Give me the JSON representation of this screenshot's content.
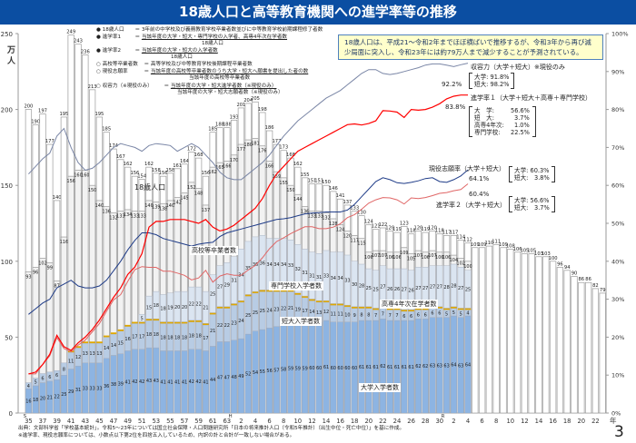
{
  "title": "18歳人口と高等教育機関への進学率等の推移",
  "legend": [
    {
      "marker": "filled",
      "label": "18歳人口",
      "eq": "＝",
      "numerator": "3年前の中学校及び義務教育学校卒業者数並びに中等教育学校前期課程修了者数",
      "denominator": ""
    },
    {
      "marker": "filled",
      "label": "進学率1",
      "eq": "＝",
      "numerator": "当該年度の大学・短大・専門学校の入学者、高専4年次在学者数",
      "denominator": "18歳人口"
    },
    {
      "marker": "filled",
      "label": "進学率2",
      "eq": "＝",
      "numerator": "当該年度の大学・短大の入学者数",
      "denominator": "18歳人口"
    },
    {
      "marker": "hollow",
      "label": "高校等卒業者数",
      "eq": "＝",
      "numerator": "高等学校及び中等教育学校後期課程卒業者数",
      "denominator": ""
    },
    {
      "marker": "hollow",
      "label": "現役志願率",
      "eq": "＝",
      "numerator": "当該年度の高校等卒業者数のうち大学・短大へ願書を提出した者の数",
      "denominator": "当該年度の高校等卒業者数"
    },
    {
      "marker": "hollow",
      "label": "収容力（※現役のみ）",
      "eq": "＝",
      "numerator": "当該年度の大学・短大進学者数（※現役のみ）",
      "denominator": "当該年度の大学・短大志願者数（※現役のみ）"
    }
  ],
  "note_box": "18歳人口は、平成21～令和2年までほぼ横ばいで推移するが、令和3年から再び減少局面に突入し、令和23年には約79万人まで減少することが予測されている。",
  "annotations": {
    "capacity": {
      "label": "収容力（大学＋短大）※現役のみ",
      "value": "92.2%",
      "breakdown": [
        "大学: 91.8%",
        "短大: 98.2%"
      ]
    },
    "rate1": {
      "label": "進学率１（大学＋短大＋高専＋専門学校）",
      "value": "83.8%",
      "breakdown": [
        [
          "大　学:",
          "56.6%"
        ],
        [
          "短　大:",
          "3.7%"
        ],
        [
          "高専4年次:",
          "1.0%"
        ],
        [
          "専門学校:",
          "22.5%"
        ]
      ]
    },
    "application": {
      "label": "現役志願率（大学＋短大）",
      "value": "64.1%",
      "breakdown": [
        "大学: 60.3%",
        "短大:　3.8%"
      ]
    },
    "rate2": {
      "label": "進学率２（大学＋短大）",
      "value": "60.4%",
      "breakdown": [
        "大学: 56.6%",
        "短大:　3.7%"
      ]
    }
  },
  "series_labels": {
    "population": "18歳人口",
    "hs_grads": "高校等卒業者数",
    "vocational": "専門学校入学者数",
    "junior_college": "短大入学者数",
    "kosen": "高専4年次在学者数",
    "university": "大学入学者数"
  },
  "footer": [
    "出典：文部科学省「学校基本統計」。令和5～23年については国立社会保障・人口問題研究所「日本の将来推計人口（令和5年推計）（出生中位・死亡中位）」を基に作成。",
    "※進学率、現役志願率については、小数点以下第2位を四捨五入しているため、内訳の計と合計が一致しない場合がある。"
  ],
  "page_number": "3",
  "colors": {
    "title_bg": "#0b4ea2",
    "population": "#ffffff",
    "hs_grads": "#f2f2f2",
    "university": "#8db4e2",
    "junior_college": "#b8cce4",
    "kosen": "#e0a800",
    "vocational": "#dbe5f1",
    "rate1": "#ff0000",
    "rate2": "#e06666",
    "application": "#1f3c88",
    "capacity": "#7a86a6",
    "note_bg": "#ffffcc",
    "note_border": "#4f81bd"
  },
  "chart_data": {
    "type": "bar+line",
    "y_left": {
      "label": "万人",
      "ticks": [
        "0",
        "50",
        "100",
        "150",
        "200",
        "250"
      ],
      "range": [
        0,
        250
      ]
    },
    "y_right": {
      "ticks": [
        "0%",
        "10%",
        "20%",
        "30%",
        "40%",
        "50%",
        "60%",
        "70%",
        "80%",
        "90%",
        "100%"
      ],
      "range": [
        0,
        100
      ]
    },
    "x_unit": "年",
    "era_marks": [
      {
        "at": "S35",
        "label": "S"
      },
      {
        "at": "H1",
        "label": "H"
      },
      {
        "at": "R1",
        "label": "R"
      }
    ],
    "x_ticks": [
      {
        "at": "S35",
        "label": "35"
      },
      {
        "at": "S37",
        "label": "37"
      },
      {
        "at": "S39",
        "label": "39"
      },
      {
        "at": "S41",
        "label": "41"
      },
      {
        "at": "S43",
        "label": "43"
      },
      {
        "at": "S45",
        "label": "45"
      },
      {
        "at": "S47",
        "label": "47"
      },
      {
        "at": "S49",
        "label": "49"
      },
      {
        "at": "S51",
        "label": "51"
      },
      {
        "at": "S53",
        "label": "53"
      },
      {
        "at": "S55",
        "label": "55"
      },
      {
        "at": "S57",
        "label": "57"
      },
      {
        "at": "S59",
        "label": "59"
      },
      {
        "at": "S61",
        "label": "61"
      },
      {
        "at": "S63",
        "label": "63"
      },
      {
        "at": "H2",
        "label": "2"
      },
      {
        "at": "H4",
        "label": "4"
      },
      {
        "at": "H6",
        "label": "6"
      },
      {
        "at": "H8",
        "label": "8"
      },
      {
        "at": "H10",
        "label": "10"
      },
      {
        "at": "H12",
        "label": "12"
      },
      {
        "at": "H14",
        "label": "14"
      },
      {
        "at": "H16",
        "label": "16"
      },
      {
        "at": "H18",
        "label": "18"
      },
      {
        "at": "H20",
        "label": "20"
      },
      {
        "at": "H22",
        "label": "22"
      },
      {
        "at": "H24",
        "label": "24"
      },
      {
        "at": "H26",
        "label": "26"
      },
      {
        "at": "H28",
        "label": "28"
      },
      {
        "at": "H30",
        "label": "30"
      },
      {
        "at": "R2",
        "label": "2"
      },
      {
        "at": "R4",
        "label": "4"
      },
      {
        "at": "R6",
        "label": "6"
      },
      {
        "at": "R8",
        "label": "8"
      },
      {
        "at": "R10",
        "label": "10"
      },
      {
        "at": "R12",
        "label": "12"
      },
      {
        "at": "R14",
        "label": "14"
      },
      {
        "at": "R16",
        "label": "16"
      },
      {
        "at": "R18",
        "label": "18"
      },
      {
        "at": "R20",
        "label": "20"
      },
      {
        "at": "R22",
        "label": "22"
      }
    ],
    "years": [
      "S35",
      "S36",
      "S37",
      "S38",
      "S39",
      "S40",
      "S41",
      "S42",
      "S43",
      "S44",
      "S45",
      "S46",
      "S47",
      "S48",
      "S49",
      "S50",
      "S51",
      "S52",
      "S53",
      "S54",
      "S55",
      "S56",
      "S57",
      "S58",
      "S59",
      "S60",
      "S61",
      "S62",
      "S63",
      "H1",
      "H2",
      "H3",
      "H4",
      "H5",
      "H6",
      "H7",
      "H8",
      "H9",
      "H10",
      "H11",
      "H12",
      "H13",
      "H14",
      "H15",
      "H16",
      "H17",
      "H18",
      "H19",
      "H20",
      "H21",
      "H22",
      "H23",
      "H24",
      "H25",
      "H26",
      "H27",
      "H28",
      "H29",
      "H30",
      "R1",
      "R2",
      "R3",
      "R4",
      "R5",
      "R6",
      "R7",
      "R8",
      "R9",
      "R10",
      "R11",
      "R12",
      "R13",
      "R14",
      "R15",
      "R16",
      "R17",
      "R18",
      "R19",
      "R20",
      "R21",
      "R22",
      "R23"
    ],
    "population": [
      200,
      190,
      197,
      177,
      140,
      195,
      249,
      243,
      236,
      213,
      195,
      185,
      174,
      167,
      162,
      156,
      154,
      162,
      158,
      156,
      158,
      161,
      164,
      172,
      168,
      156,
      185,
      188,
      188,
      193,
      201,
      204,
      205,
      198,
      186,
      177,
      173,
      168,
      162,
      155,
      151,
      151,
      150,
      146,
      141,
      137,
      133,
      130,
      124,
      121,
      122,
      120,
      119,
      123,
      118,
      120,
      119,
      120,
      118,
      117,
      117,
      114,
      112,
      109,
      109,
      110,
      111,
      109,
      108,
      106,
      105,
      105,
      103,
      103,
      100,
      96,
      94,
      90,
      86,
      86,
      82,
      79
    ],
    "hs_grads": [
      93,
      96,
      102,
      99,
      87,
      116,
      156,
      160,
      160,
      150,
      140,
      136,
      132,
      133,
      134,
      133,
      133,
      140,
      139,
      138,
      140,
      142,
      145,
      152,
      148,
      137,
      162,
      165,
      166,
      170,
      177,
      180,
      181,
      176,
      166,
      159,
      155,
      150,
      144,
      136,
      133,
      133,
      132,
      128,
      124,
      120,
      117,
      115,
      106,
      107,
      107,
      106,
      106,
      109,
      105,
      107,
      106,
      107,
      106,
      106,
      104,
      102,
      100
    ],
    "university": [
      16,
      18,
      20,
      21,
      22,
      25,
      29,
      31,
      33,
      33,
      33,
      36,
      38,
      39,
      41,
      42,
      42,
      43,
      43,
      41,
      41,
      41,
      41,
      42,
      42,
      41,
      44,
      47,
      47,
      48,
      49,
      52,
      54,
      55,
      56,
      57,
      58,
      59,
      59,
      59,
      60,
      60,
      61,
      60,
      60,
      60,
      60,
      61,
      61,
      61,
      62,
      61,
      61,
      61,
      61,
      62,
      62,
      63,
      63,
      63,
      64,
      63,
      64
    ],
    "junior_college": [
      4,
      5,
      6,
      6,
      6,
      8,
      11,
      12,
      13,
      13,
      13,
      14,
      14,
      15,
      16,
      17,
      17,
      18,
      18,
      18,
      18,
      18,
      18,
      18,
      18,
      17,
      21,
      22,
      22,
      23,
      24,
      25,
      25,
      25,
      24,
      23,
      22,
      21,
      19,
      17,
      14,
      13,
      12,
      11,
      11,
      10,
      9,
      8,
      8,
      7,
      7,
      7,
      7,
      6,
      6,
      6,
      6,
      6,
      6,
      5,
      5,
      5,
      4
    ],
    "kosen": [
      0,
      0,
      0,
      0,
      0,
      0,
      1,
      1,
      1,
      1,
      1,
      1,
      1,
      1,
      1,
      1,
      1,
      1,
      1,
      1,
      1,
      1,
      1,
      1,
      1,
      1,
      1,
      1,
      1,
      1,
      1,
      1,
      1,
      1,
      1,
      1,
      1,
      1,
      1,
      1,
      1,
      1,
      1,
      1,
      1,
      1,
      1,
      1,
      1,
      1,
      1,
      1,
      1,
      1,
      1,
      1,
      1,
      1,
      1,
      1,
      1,
      1,
      1
    ],
    "vocational": [
      0,
      0,
      0,
      0,
      0,
      0,
      0,
      0,
      0,
      0,
      0,
      0,
      0,
      0,
      0,
      0,
      5,
      15,
      18,
      18,
      19,
      20,
      20,
      22,
      22,
      21,
      25,
      27,
      29,
      31,
      34,
      35,
      36,
      36,
      34,
      34,
      34,
      33,
      32,
      31,
      31,
      31,
      33,
      34,
      34,
      33,
      30,
      28,
      25,
      25,
      27,
      26,
      26,
      27,
      26,
      27,
      27,
      27,
      27,
      28,
      28,
      27,
      25
    ],
    "rate1": [
      10.3,
      10.8,
      12.8,
      15.5,
      20.5,
      17.5,
      16.5,
      18.5,
      20,
      22,
      24.5,
      27.5,
      30.5,
      33,
      36.5,
      38.5,
      42,
      49,
      50.5,
      50.5,
      51,
      51,
      51,
      50.5,
      50,
      51,
      49,
      48,
      48.5,
      49.5,
      51,
      52.5,
      54,
      56.5,
      60,
      63,
      65,
      67,
      69,
      70,
      71,
      72,
      73,
      74,
      75,
      76,
      76.2,
      75.9,
      76.3,
      77,
      79.7,
      79.6,
      79.3,
      77.9,
      80,
      79.8,
      80,
      80.6,
      81.5,
      82.8,
      83.5,
      83.8,
      83.8
    ],
    "rate2": [
      10.3,
      10.3,
      12.8,
      15.1,
      19.9,
      17,
      16.1,
      17.9,
      19.2,
      21.4,
      23.6,
      26.8,
      29.8,
      31.2,
      34.7,
      37.8,
      38.6,
      38.4,
      38.4,
      37.4,
      37.4,
      36.9,
      36.3,
      35.1,
      35.6,
      37.6,
      34.5,
      36.1,
      36.7,
      36.3,
      36.3,
      37.7,
      38.9,
      40.9,
      43.3,
      45.2,
      46.2,
      47.3,
      48.2,
      49.1,
      49.1,
      48.6,
      48.6,
      49,
      49.9,
      51.5,
      52.3,
      53.7,
      55.3,
      56.2,
      56.8,
      56.7,
      56.2,
      55.1,
      56.7,
      56.5,
      56.8,
      57.3,
      57.9,
      58.1,
      58.6,
      58.9,
      60.4
    ],
    "application": [
      26,
      27.5,
      29,
      30,
      33,
      34,
      35,
      33.5,
      33,
      33,
      33.5,
      35,
      37.5,
      40,
      43,
      45.5,
      47.5,
      47.5,
      47,
      46,
      45.5,
      45,
      44.5,
      44,
      44.5,
      44.8,
      45,
      46.5,
      47.5,
      48,
      48.5,
      49,
      49.5,
      50,
      50.5,
      51,
      51.2,
      51.5,
      52,
      52.5,
      52.7,
      52.8,
      53,
      53,
      53,
      53.5,
      55,
      57,
      59,
      61,
      62,
      61.5,
      60.7,
      60.5,
      60.8,
      61.2,
      61.8,
      62,
      61,
      60.8,
      61.5,
      62.5,
      64.1
    ],
    "capacity": [
      63,
      65,
      67,
      68.5,
      73,
      75,
      70,
      66,
      64,
      64.5,
      66,
      68,
      70,
      71,
      70.5,
      70,
      69,
      70.5,
      71,
      70.8,
      70.5,
      69,
      70,
      71,
      70,
      68,
      66,
      63.5,
      62,
      61.5,
      61.5,
      63,
      64.5,
      66,
      68,
      70.5,
      73,
      75,
      77,
      78.5,
      80,
      81.5,
      83,
      84,
      85,
      86.5,
      88,
      89.5,
      90.5,
      90.5,
      89.5,
      89.2,
      89.5,
      90,
      90.5,
      91,
      91.7,
      92,
      92,
      91.7,
      91.3,
      91.8,
      92.2
    ]
  }
}
